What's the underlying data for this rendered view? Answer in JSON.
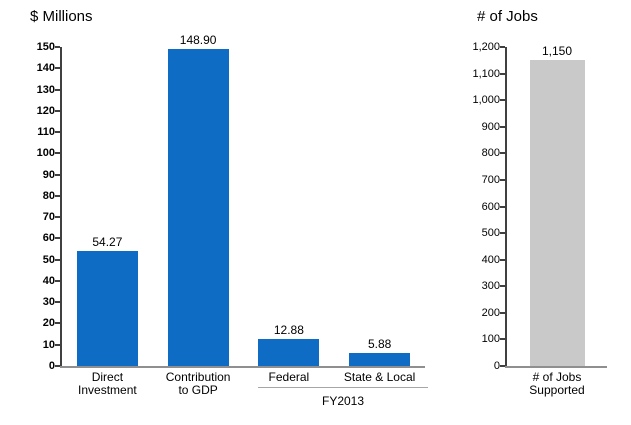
{
  "figure": {
    "background_color": "#ffffff",
    "text_color": "#000000",
    "axis_color": "#404040",
    "baseline_color": "#8f8f8f",
    "group_line_color": "#a6a6a6"
  },
  "chart_data": [
    {
      "type": "bar",
      "title": "$ Millions",
      "categories": [
        [
          "Direct",
          "Investment"
        ],
        [
          "Contribution",
          "to GDP"
        ],
        [
          "Federal"
        ],
        [
          "State & Local"
        ]
      ],
      "values": [
        54.27,
        148.9,
        12.88,
        5.88
      ],
      "data_labels": [
        "54.27",
        "148.90",
        "12.88",
        "5.88"
      ],
      "ylim": [
        0,
        150
      ],
      "ytick_step": 10,
      "ytick_labels_bold": true,
      "bar_color": "#0f6cc4",
      "grid": false,
      "legend": "none",
      "group_label": {
        "text": "FY2013",
        "covers_categories": [
          "Federal",
          "State & Local"
        ],
        "from_index": 2,
        "to_index": 3
      }
    },
    {
      "type": "bar",
      "title": "# of Jobs",
      "categories": [
        [
          "# of Jobs",
          "Supported"
        ]
      ],
      "values": [
        1150
      ],
      "data_labels": [
        "1,150"
      ],
      "ylim": [
        0,
        1200
      ],
      "ytick_step": 100,
      "ytick_labels_bold": false,
      "bar_color": "#c9c9c9",
      "grid": false,
      "legend": "none"
    }
  ]
}
